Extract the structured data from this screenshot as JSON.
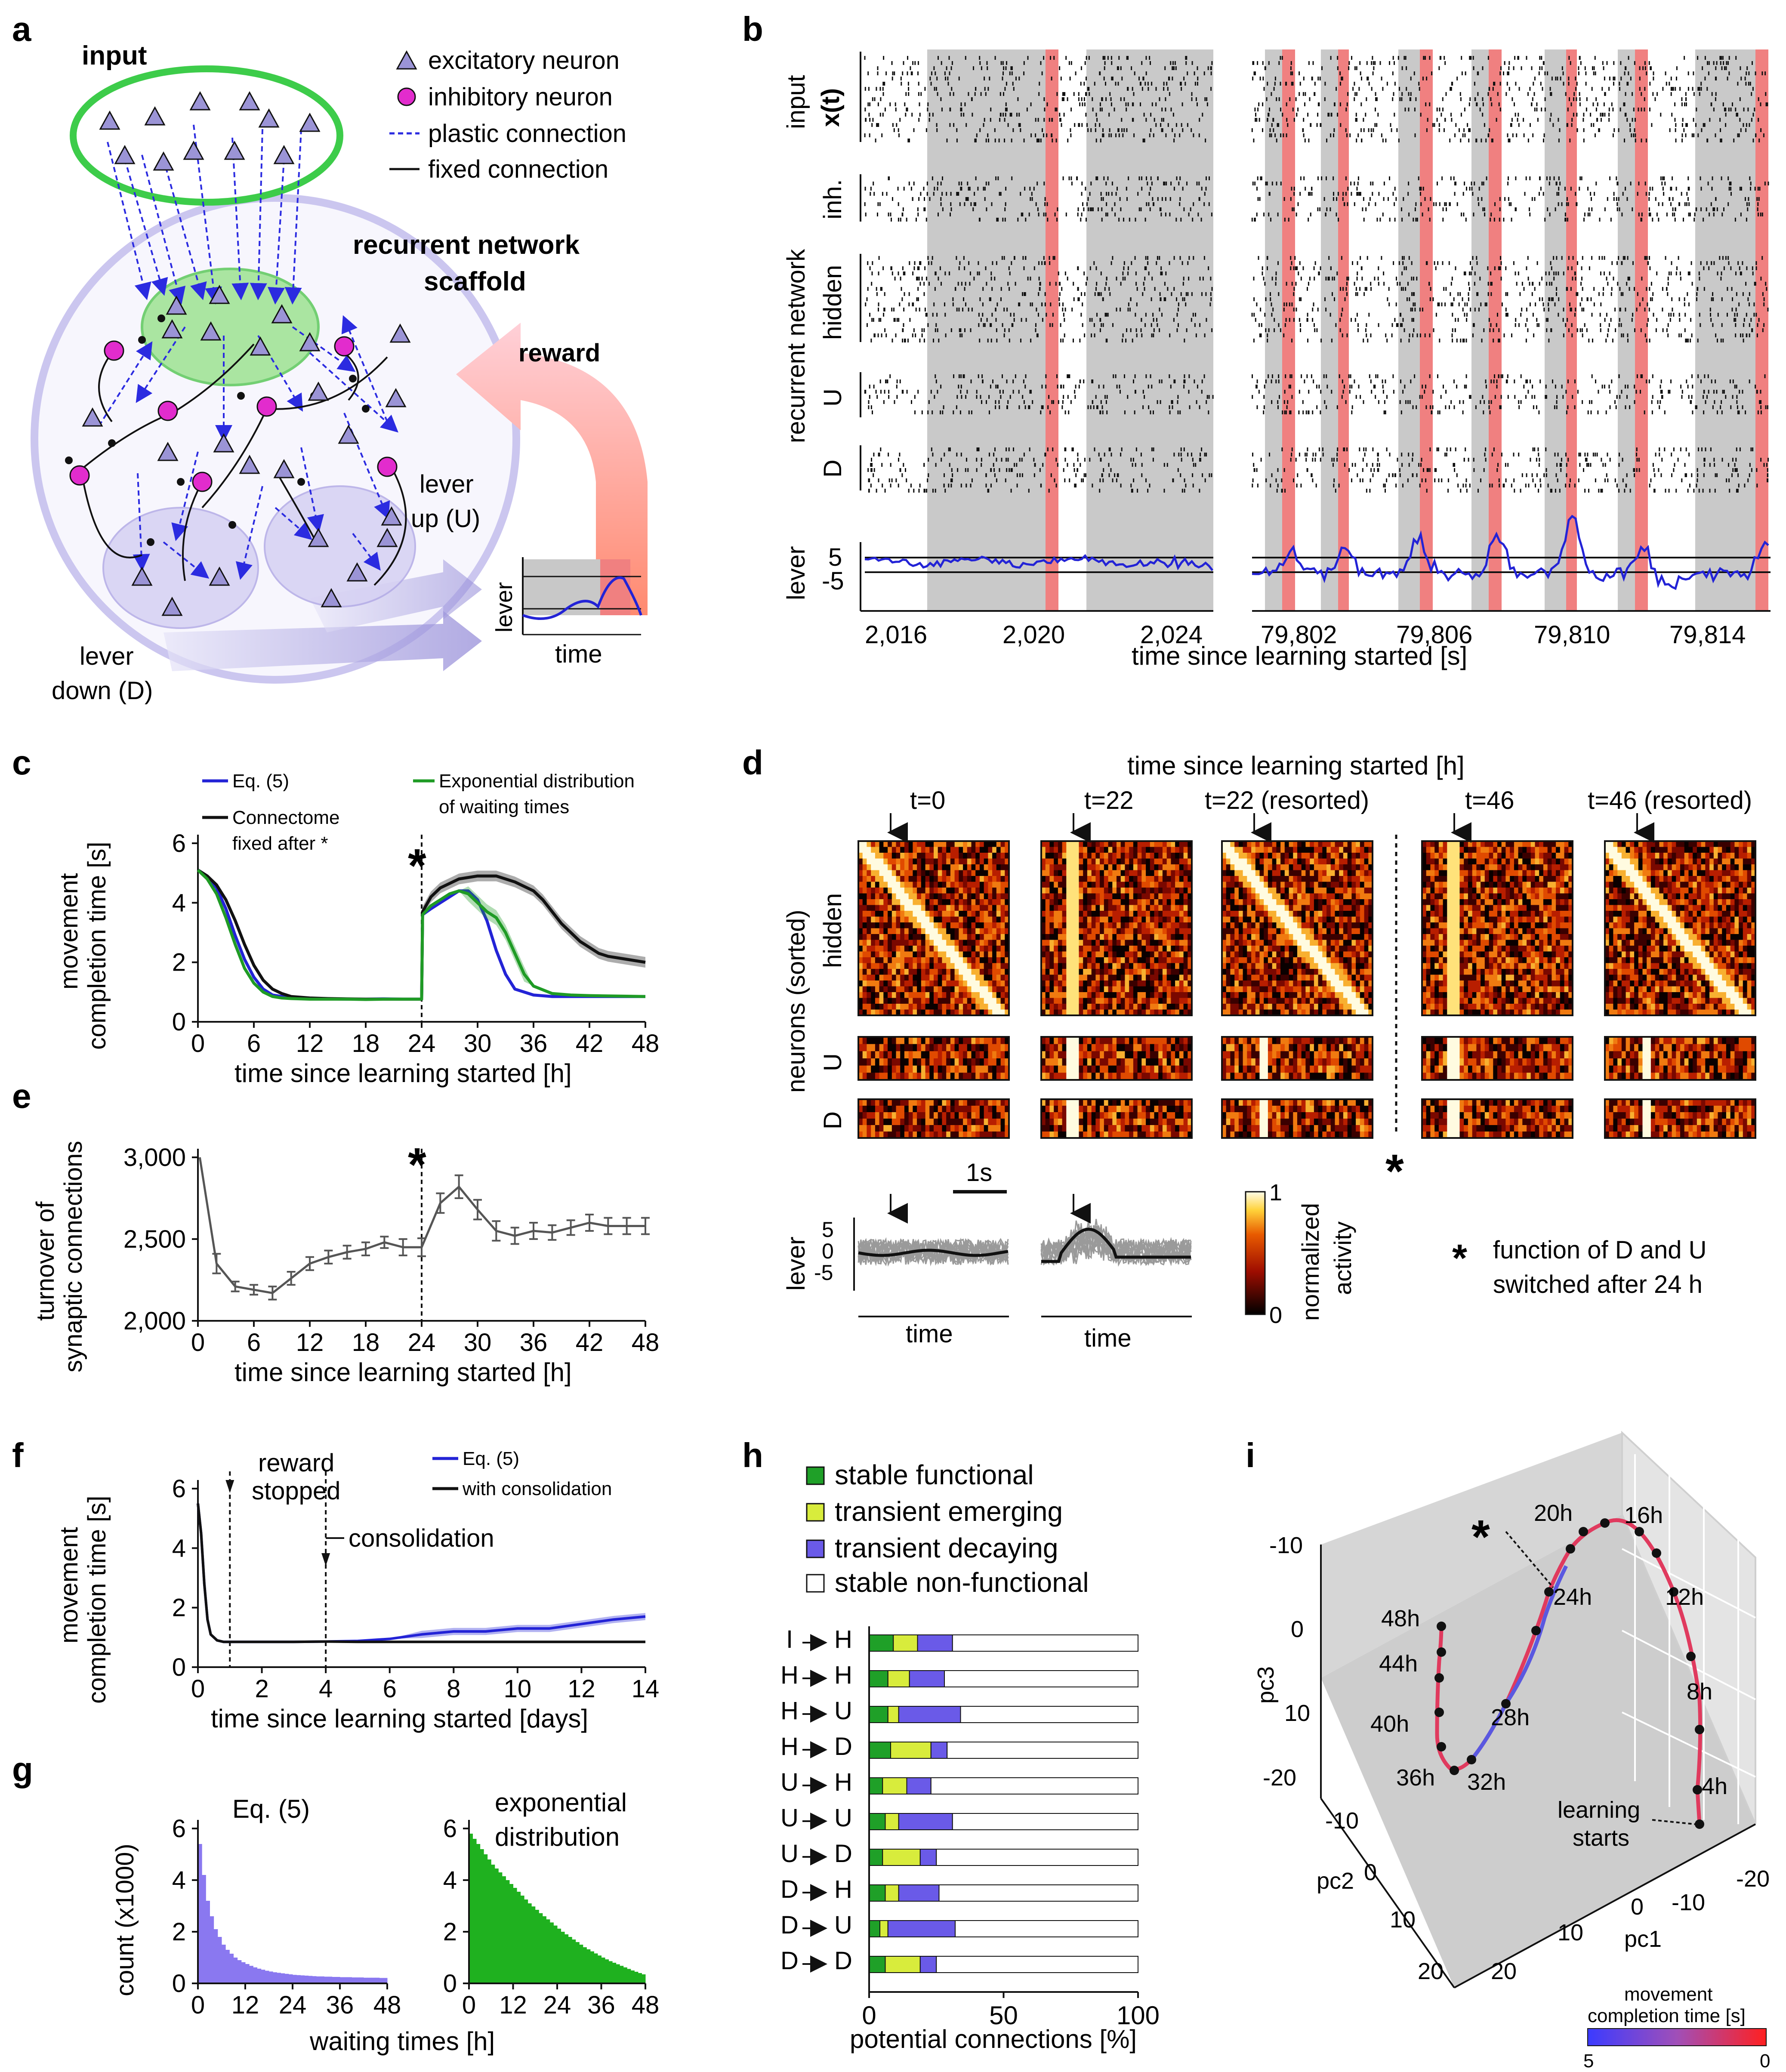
{
  "colors": {
    "blue": "#2323d6",
    "black": "#111111",
    "green": "#1f9b25",
    "gray": "#555555",
    "purple_hist": "#8a78f0",
    "green_hist": "#1fb11f",
    "shade": "#c9c9c9",
    "reward": "#f08080",
    "stable_functional": "#1fa028",
    "transient_emerging": "#d8ec3c",
    "transient_decaying": "#6a5ae8",
    "stable_nonfunctional": "#ffffff",
    "neuron_exc": "#9b94d6",
    "neuron_inh": "#e22ccd",
    "input_ring": "#3dcc4a",
    "scaffold": "#cbc6ef"
  },
  "panel_labels": {
    "a": "a",
    "b": "b",
    "c": "c",
    "d": "d",
    "e": "e",
    "f": "f",
    "g": "g",
    "h": "h",
    "i": "i"
  },
  "panel_a": {
    "input": "input",
    "legend": [
      "excitatory neuron",
      "inhibitory neuron",
      "plastic connection",
      "fixed connection"
    ],
    "recurrent": "recurrent network",
    "scaffold": "scaffold",
    "reward": "reward",
    "lever_up": [
      "lever",
      "up (U)"
    ],
    "lever_down": [
      "lever",
      "down (D)"
    ],
    "inset_ylabel": "lever",
    "inset_xlabel": "time"
  },
  "panel_b": {
    "row_labels": {
      "input": "input",
      "x": "x(t)",
      "inh": "inh.",
      "hidden": "hidden",
      "U": "U",
      "D": "D",
      "lever": "lever"
    },
    "group_label": "recurrent network",
    "lever_ticks": [
      "5",
      "-5"
    ],
    "xticks_left": [
      "2,016",
      "2,020",
      "2,024"
    ],
    "xticks_right": [
      "79,802",
      "79,806",
      "79,810",
      "79,814"
    ],
    "xlabel": "time since learning started [s]"
  },
  "panel_c": {
    "legend": {
      "blue": "Eq. (5)",
      "black1": "Connectome",
      "black2": "fixed after *",
      "green1": "Exponential distribution",
      "green2": "of waiting times"
    },
    "ylabel": [
      "movement",
      "completion time [s]"
    ],
    "xlabel": "time since learning started [h]",
    "star": "*",
    "chart_data": {
      "type": "line",
      "xlim": [
        0,
        48
      ],
      "ylim": [
        0,
        6
      ],
      "xticks": [
        0,
        6,
        12,
        18,
        24,
        30,
        36,
        42,
        48
      ],
      "yticks": [
        0,
        2,
        4,
        6
      ],
      "series": [
        {
          "name": "Eq. (5)",
          "x": [
            0,
            1,
            2,
            3,
            4,
            5,
            6,
            7,
            8,
            9,
            10,
            12,
            14,
            16,
            18,
            20,
            22,
            24,
            24.1,
            25,
            26,
            27,
            28,
            29,
            30,
            31,
            32,
            33,
            34,
            36,
            38,
            40,
            42,
            44,
            46,
            48
          ],
          "y": [
            5.1,
            4.9,
            4.5,
            3.8,
            2.9,
            2.1,
            1.5,
            1.1,
            0.9,
            0.85,
            0.8,
            0.78,
            0.77,
            0.76,
            0.76,
            0.77,
            0.76,
            0.76,
            3.6,
            3.8,
            4.0,
            4.2,
            4.4,
            4.4,
            4.1,
            3.4,
            2.4,
            1.6,
            1.1,
            0.9,
            0.85,
            0.85,
            0.85,
            0.85,
            0.85,
            0.85
          ]
        },
        {
          "name": "Connectome fixed after *",
          "x": [
            0,
            1,
            2,
            3,
            4,
            5,
            6,
            7,
            8,
            9,
            10,
            12,
            14,
            16,
            18,
            20,
            22,
            24,
            24.1,
            25,
            26,
            28,
            30,
            32,
            34,
            36,
            37,
            38,
            39,
            40,
            41,
            42,
            43,
            44,
            46,
            48
          ],
          "y": [
            5.1,
            4.9,
            4.6,
            4.1,
            3.4,
            2.6,
            1.9,
            1.4,
            1.1,
            0.95,
            0.85,
            0.8,
            0.78,
            0.77,
            0.76,
            0.76,
            0.76,
            0.76,
            3.7,
            4.2,
            4.5,
            4.8,
            4.9,
            4.9,
            4.7,
            4.4,
            4.1,
            3.7,
            3.3,
            3.0,
            2.7,
            2.5,
            2.3,
            2.2,
            2.1,
            2.0
          ]
        },
        {
          "name": "Exponential distribution of waiting times",
          "x": [
            0,
            1,
            2,
            3,
            4,
            5,
            6,
            7,
            8,
            9,
            10,
            12,
            14,
            16,
            18,
            20,
            22,
            24,
            24.1,
            25,
            26,
            27,
            28,
            29,
            30,
            31,
            32,
            33,
            34,
            35,
            36,
            38,
            40,
            42,
            44,
            46,
            48
          ],
          "y": [
            5.1,
            4.8,
            4.3,
            3.5,
            2.6,
            1.8,
            1.3,
            1.0,
            0.85,
            0.8,
            0.78,
            0.76,
            0.76,
            0.76,
            0.75,
            0.76,
            0.76,
            0.76,
            3.6,
            3.9,
            4.1,
            4.3,
            4.4,
            4.3,
            4.0,
            3.7,
            3.5,
            3.0,
            2.3,
            1.6,
            1.2,
            0.95,
            0.9,
            0.88,
            0.87,
            0.86,
            0.85
          ]
        }
      ]
    }
  },
  "panel_d": {
    "header": "time since learning started [h]",
    "columns": [
      "t=0",
      "t=22",
      "t=22 (resorted)",
      "t=46",
      "t=46 (resorted)"
    ],
    "ylabel": "neurons (sorted)",
    "rows": [
      "hidden",
      "U",
      "D"
    ],
    "lever_label": "lever",
    "lever_ticks": [
      "5",
      "0",
      "-5"
    ],
    "scale": "1s",
    "time": "time",
    "cbar_label": [
      "normalized",
      "activity"
    ],
    "cbar_ticks": [
      "1",
      "0"
    ],
    "footnote": [
      "function of D and U",
      "switched after 24 h"
    ],
    "star": "*"
  },
  "panel_e": {
    "ylabel": [
      "turnover of",
      "synaptic connections"
    ],
    "xlabel": "time since learning started [h]",
    "star": "*",
    "chart_data": {
      "type": "line",
      "xlim": [
        0,
        48
      ],
      "ylim": [
        2000,
        3000
      ],
      "xticks": [
        0,
        6,
        12,
        18,
        24,
        30,
        36,
        42,
        48
      ],
      "yticks": [
        2000,
        2500,
        3000
      ],
      "ytick_labels": [
        "2,000",
        "2,500",
        "3,000"
      ],
      "series": [
        {
          "name": "",
          "x": [
            0.2,
            2,
            4,
            6,
            8,
            10,
            12,
            14,
            16,
            18,
            20,
            22,
            24,
            26,
            28,
            30,
            32,
            34,
            36,
            38,
            40,
            42,
            44,
            46,
            48
          ],
          "y": [
            3000,
            2350,
            2210,
            2190,
            2170,
            2260,
            2350,
            2390,
            2420,
            2440,
            2480,
            2450,
            2450,
            2720,
            2820,
            2680,
            2550,
            2520,
            2550,
            2540,
            2570,
            2600,
            2580,
            2580,
            2580
          ],
          "err": [
            0,
            60,
            30,
            30,
            40,
            40,
            40,
            40,
            40,
            40,
            35,
            50,
            55,
            60,
            70,
            60,
            60,
            50,
            50,
            45,
            45,
            50,
            50,
            50,
            50
          ]
        }
      ]
    }
  },
  "panel_f": {
    "legend": {
      "blue": "Eq. (5)",
      "black": "with consolidation"
    },
    "ylabel": [
      "movement",
      "completion time [s]"
    ],
    "xlabel": "time since learning started [days]",
    "ann_reward": [
      "reward",
      "stopped"
    ],
    "ann_consol": "consolidation",
    "chart_data": {
      "type": "line",
      "xlim": [
        0,
        14
      ],
      "ylim": [
        0,
        6
      ],
      "xticks": [
        0,
        2,
        4,
        6,
        8,
        10,
        12,
        14
      ],
      "yticks": [
        0,
        2,
        4,
        6
      ],
      "series": [
        {
          "name": "Eq. (5)",
          "x": [
            0,
            0.1,
            0.2,
            0.3,
            0.4,
            0.6,
            0.8,
            1,
            2,
            3,
            4,
            5,
            6,
            7,
            8,
            9,
            10,
            11,
            12,
            13,
            14
          ],
          "y": [
            5.5,
            4.5,
            2.8,
            1.6,
            1.1,
            0.9,
            0.85,
            0.85,
            0.85,
            0.85,
            0.86,
            0.88,
            0.95,
            1.1,
            1.2,
            1.2,
            1.3,
            1.3,
            1.45,
            1.6,
            1.7
          ]
        },
        {
          "name": "with consolidation",
          "x": [
            0,
            0.1,
            0.2,
            0.3,
            0.4,
            0.6,
            0.8,
            1,
            2,
            3,
            4,
            5,
            6,
            7,
            8,
            9,
            10,
            11,
            12,
            13,
            14
          ],
          "y": [
            5.5,
            4.5,
            2.8,
            1.6,
            1.1,
            0.9,
            0.85,
            0.85,
            0.85,
            0.85,
            0.86,
            0.85,
            0.85,
            0.85,
            0.85,
            0.85,
            0.85,
            0.85,
            0.85,
            0.85,
            0.85
          ]
        }
      ]
    }
  },
  "panel_g": {
    "ylabel": "count (x1000)",
    "xlabel": "waiting times [h]",
    "left_title": "Eq. (5)",
    "right_title": [
      "exponential",
      "distribution"
    ],
    "chart_data": [
      {
        "type": "bar",
        "xlim": [
          0,
          48
        ],
        "ylim": [
          0,
          6
        ],
        "xticks": [
          0,
          12,
          24,
          36,
          48
        ],
        "yticks": [
          0,
          2,
          4,
          6
        ],
        "bin_width": 1,
        "values": [
          5.4,
          4.2,
          3.2,
          2.6,
          2.1,
          1.8,
          1.5,
          1.3,
          1.15,
          1.0,
          0.9,
          0.82,
          0.75,
          0.68,
          0.62,
          0.57,
          0.53,
          0.49,
          0.46,
          0.43,
          0.41,
          0.39,
          0.37,
          0.35,
          0.33,
          0.32,
          0.31,
          0.3,
          0.29,
          0.28,
          0.27,
          0.27,
          0.26,
          0.26,
          0.25,
          0.25,
          0.24,
          0.24,
          0.24,
          0.23,
          0.23,
          0.23,
          0.22,
          0.22,
          0.22,
          0.22,
          0.21,
          0.21
        ]
      },
      {
        "type": "bar",
        "xlim": [
          0,
          48
        ],
        "ylim": [
          0,
          6
        ],
        "xticks": [
          0,
          12,
          24,
          36,
          48
        ],
        "yticks": [
          0,
          2,
          4,
          6
        ],
        "bin_width": 1,
        "values": [
          5.8,
          5.6,
          5.4,
          5.2,
          5.0,
          4.8,
          4.6,
          4.45,
          4.3,
          4.15,
          4.0,
          3.85,
          3.7,
          3.55,
          3.4,
          3.25,
          3.1,
          2.98,
          2.85,
          2.72,
          2.6,
          2.48,
          2.36,
          2.24,
          2.12,
          2.0,
          1.9,
          1.8,
          1.7,
          1.6,
          1.5,
          1.4,
          1.32,
          1.24,
          1.16,
          1.08,
          1.0,
          0.93,
          0.86,
          0.8,
          0.74,
          0.68,
          0.62,
          0.56,
          0.5,
          0.45,
          0.4,
          0.35
        ]
      }
    ]
  },
  "panel_h": {
    "legend": [
      "stable functional",
      "transient emerging",
      "transient decaying",
      "stable non-functional"
    ],
    "xlabel": "potential connections [%]",
    "chart_data": {
      "type": "bar",
      "orientation": "horizontal-stacked",
      "xlim": [
        0,
        100
      ],
      "xticks": [
        0,
        50,
        100
      ],
      "categories": [
        [
          "I",
          "H"
        ],
        [
          "H",
          "H"
        ],
        [
          "H",
          "U"
        ],
        [
          "H",
          "D"
        ],
        [
          "U",
          "H"
        ],
        [
          "U",
          "U"
        ],
        [
          "U",
          "D"
        ],
        [
          "D",
          "H"
        ],
        [
          "D",
          "U"
        ],
        [
          "D",
          "D"
        ]
      ],
      "series": [
        {
          "name": "stable functional",
          "values": [
            9,
            7,
            7,
            8,
            5,
            6,
            5,
            6,
            4,
            6
          ]
        },
        {
          "name": "transient emerging",
          "values": [
            9,
            8,
            4,
            15,
            9,
            5,
            14,
            5,
            3,
            13
          ]
        },
        {
          "name": "transient decaying",
          "values": [
            13,
            13,
            23,
            6,
            9,
            20,
            6,
            15,
            25,
            6
          ]
        },
        {
          "name": "stable non-functional",
          "values": [
            69,
            72,
            66,
            71,
            77,
            69,
            75,
            74,
            68,
            75
          ]
        }
      ]
    }
  },
  "panel_i": {
    "zlabel": "pc3",
    "ylabel": "pc2",
    "xlabel": "pc1",
    "zticks": [
      "-10",
      "0",
      "10",
      "-20"
    ],
    "yticks": [
      "-10",
      "0",
      "10",
      "20"
    ],
    "xticks": [
      "20",
      "10",
      "0",
      "-10",
      "-20"
    ],
    "time_labels": [
      "20h",
      "16h",
      "24h",
      "12h",
      "48h",
      "44h",
      "8h",
      "28h",
      "40h",
      "4h",
      "36h",
      "32h"
    ],
    "learning_starts": [
      "learning",
      "starts"
    ],
    "star": "*",
    "cbar_title": [
      "movement",
      "completion time [s]"
    ],
    "cbar_ticks": [
      "5",
      "0"
    ]
  }
}
